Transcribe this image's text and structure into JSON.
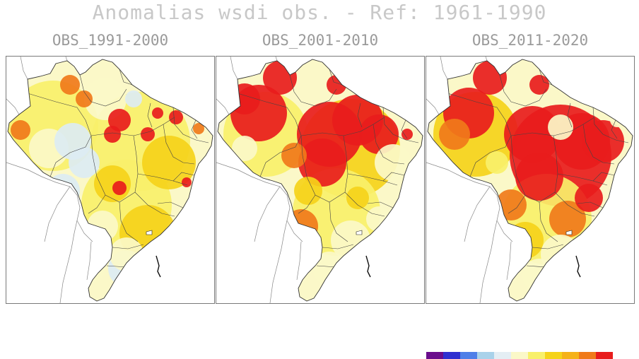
{
  "title": "Anomalias wsdi obs. - Ref: 1961-1990",
  "panels": [
    {
      "label": "OBS_1991-2000"
    },
    {
      "label": "OBS_2001-2010"
    },
    {
      "label": "OBS_2011-2020"
    }
  ],
  "colorbar": {
    "colors": [
      "#6a0d8c",
      "#2f2fd0",
      "#4f7fe8",
      "#a9d2ea",
      "#e4eef4",
      "#fbf8c8",
      "#f8f06a",
      "#f5d31a",
      "#f5b21a",
      "#f07a1a",
      "#e81c1c"
    ]
  },
  "legend_colors": {
    "outside": "#ffffff",
    "neutral": "#fbf8c8",
    "low": "#f8f06a",
    "mid": "#f5d31a",
    "high": "#f07a1a",
    "extreme": "#e81c1c",
    "negative": "#dcebf3",
    "border": "#444444"
  }
}
